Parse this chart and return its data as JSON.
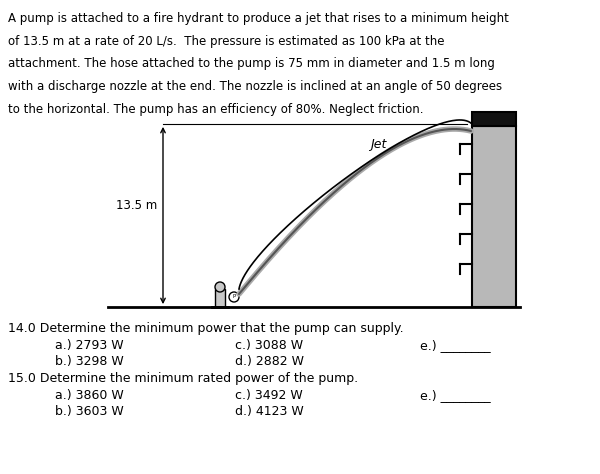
{
  "para_lines": [
    "A pump is attached to a fire hydrant to produce a jet that rises to a minimum height",
    "of 13.5 m at a rate of 20 L/s.  The pressure is estimated as 100 kPa at the",
    "attachment. The hose attached to the pump is 75 mm in diameter and 1.5 m long",
    "with a discharge nozzle at the end. The nozzle is inclined at an angle of 50 degrees",
    "to the horizontal. The pump has an efficiency of 80%. Neglect friction."
  ],
  "label_13_5": "13.5 m",
  "label_jet": "Jet",
  "q14_text": "14.0 Determine the minimum power that the pump can supply.",
  "q14_a": "a.) 2793 W",
  "q14_b": "b.) 3298 W",
  "q14_c": "c.) 3088 W",
  "q14_d": "d.) 2882 W",
  "q14_e": "e.) ________",
  "q15_text": "15.0 Determine the minimum rated power of the pump.",
  "q15_a": "a.) 3860 W",
  "q15_b": "b.) 3603 W",
  "q15_c": "c.) 3492 W",
  "q15_d": "d.) 4123 W",
  "q15_e": "e.) ________",
  "bg_color": "#ffffff",
  "text_color": "#000000",
  "wall_fill": "#b8b8b8",
  "wall_edge": "#000000",
  "ground_color": "#000000",
  "notch_color": "#000000",
  "pump_fill": "#c8c8c8",
  "jet_color": "#888888"
}
